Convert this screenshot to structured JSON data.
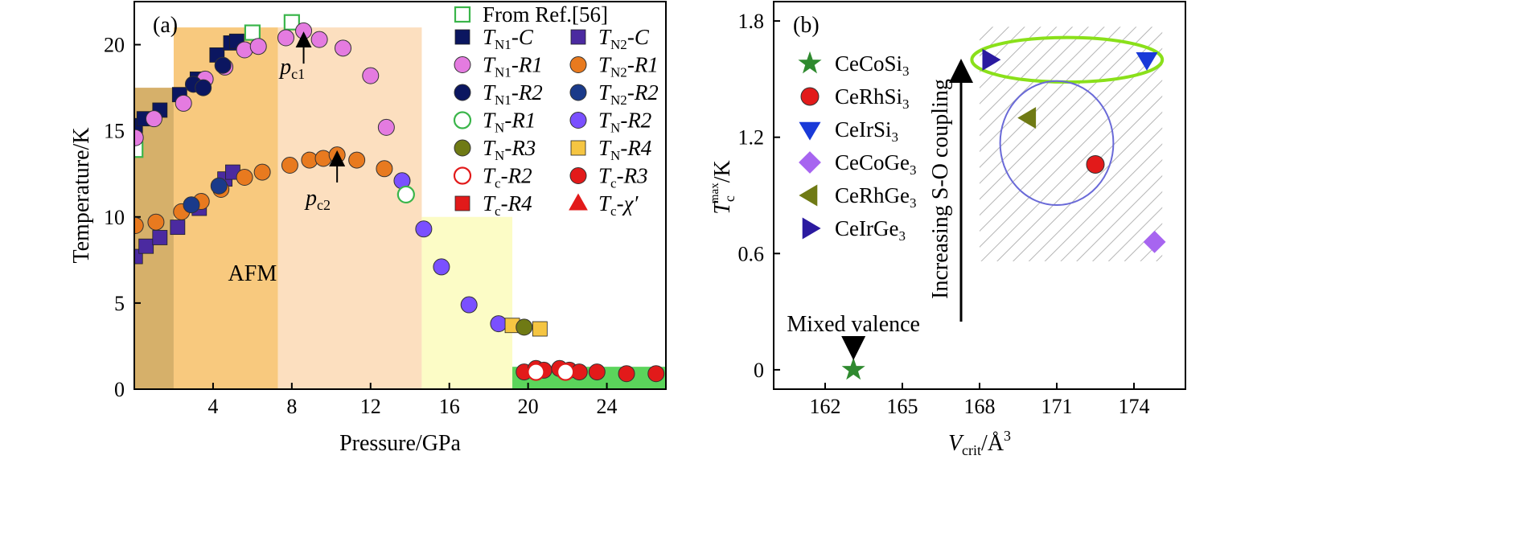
{
  "chart_data": [
    {
      "type": "scatter",
      "panel_label": "(a)",
      "xlabel": "Pressure/GPa",
      "ylabel": "Temperature/K",
      "xlim": [
        0,
        27
      ],
      "ylim": [
        0,
        22.5
      ],
      "xticks": [
        "4",
        "8",
        "12",
        "16",
        "20",
        "24"
      ],
      "yticks": [
        "0",
        "5",
        "10",
        "15",
        "20"
      ],
      "annotations": {
        "pc1": "p",
        "pc1_sub": "c1",
        "pc2": "p",
        "pc2_sub": "c2",
        "afm": "AFM"
      },
      "arrows": [
        {
          "label": "pc1",
          "x": 8.6,
          "y_from": 18.9,
          "y_to": 20.3
        },
        {
          "label": "pc2",
          "x": 10.3,
          "y_from": 12.0,
          "y_to": 13.4
        }
      ],
      "regions": [
        {
          "name": "region-dark",
          "x": [
            0,
            2.0
          ],
          "y_top": 17.5,
          "color": "#d6b06a"
        },
        {
          "name": "region-orange",
          "x": [
            2.0,
            7.3
          ],
          "y_top": 21.0,
          "color": "#f8c97e"
        },
        {
          "name": "region-salmon",
          "x": [
            7.3,
            14.6
          ],
          "y_top": 21.0,
          "color": "#fcdfbf"
        },
        {
          "name": "region-yellow",
          "x": [
            14.6,
            19.2
          ],
          "y_top": 10.0,
          "color": "#fcfcc6"
        },
        {
          "name": "region-green",
          "x": [
            19.2,
            27.0
          ],
          "y_top": 1.3,
          "color": "#5bd45b"
        }
      ],
      "legend": {
        "entries": [
          {
            "key": "ref56",
            "text": "From Ref.[56]",
            "marker": "square-open",
            "color": "#3ab54a"
          },
          {
            "key": "TN1_C",
            "sym": "T",
            "sub": "N1",
            "suffix": "-C",
            "marker": "square",
            "color": "#0b1660"
          },
          {
            "key": "TN2_C",
            "sym": "T",
            "sub": "N2",
            "suffix": "-C",
            "marker": "square",
            "color": "#4b2aa0"
          },
          {
            "key": "TN1_R1",
            "sym": "T",
            "sub": "N1",
            "suffix": "-R1",
            "marker": "circle",
            "color": "#e47be0"
          },
          {
            "key": "TN2_R1",
            "sym": "T",
            "sub": "N2",
            "suffix": "-R1",
            "marker": "circle",
            "color": "#e87a1f"
          },
          {
            "key": "TN1_R2",
            "sym": "T",
            "sub": "N1",
            "suffix": "-R2",
            "marker": "circle",
            "color": "#0b1660"
          },
          {
            "key": "TN2_R2",
            "sym": "T",
            "sub": "N2",
            "suffix": "-R2",
            "marker": "circle",
            "color": "#1a3a8a"
          },
          {
            "key": "TN_R1",
            "sym": "T",
            "sub": "N",
            "suffix": "-R1",
            "marker": "circle-open",
            "color": "#3ab54a"
          },
          {
            "key": "TN_R2",
            "sym": "T",
            "sub": "N",
            "suffix": "-R2",
            "marker": "circle",
            "color": "#7a50ff"
          },
          {
            "key": "TN_R3",
            "sym": "T",
            "sub": "N",
            "suffix": "-R3",
            "marker": "circle",
            "color": "#6f7a14"
          },
          {
            "key": "TN_R4",
            "sym": "T",
            "sub": "N",
            "suffix": "-R4",
            "marker": "square",
            "color": "#f5c542"
          },
          {
            "key": "Tc_R2",
            "sym": "T",
            "sub": "c",
            "suffix": "-R2",
            "marker": "circle-open",
            "color": "#e21a1a"
          },
          {
            "key": "Tc_R3",
            "sym": "T",
            "sub": "c",
            "suffix": "-R3",
            "marker": "circle",
            "color": "#e21a1a"
          },
          {
            "key": "Tc_R4",
            "sym": "T",
            "sub": "c",
            "suffix": "-R4",
            "marker": "square",
            "color": "#e21a1a"
          },
          {
            "key": "Tc_chi",
            "sym": "T",
            "sub": "c",
            "suffix": "-χ′",
            "marker": "triangle",
            "color": "#e21a1a"
          }
        ]
      },
      "series": [
        {
          "key": "ref56",
          "points": [
            [
              0.05,
              13.9
            ],
            [
              6.0,
              20.7
            ],
            [
              8.0,
              21.3
            ]
          ]
        },
        {
          "key": "TN1_C",
          "points": [
            [
              0.05,
              15.3
            ],
            [
              0.5,
              15.7
            ],
            [
              1.3,
              16.2
            ],
            [
              2.3,
              17.1
            ],
            [
              3.2,
              18.0
            ],
            [
              4.2,
              19.4
            ],
            [
              4.9,
              20.1
            ],
            [
              5.2,
              20.2
            ]
          ]
        },
        {
          "key": "TN2_C",
          "points": [
            [
              0.05,
              7.7
            ],
            [
              0.6,
              8.3
            ],
            [
              1.3,
              8.8
            ],
            [
              2.2,
              9.4
            ],
            [
              3.3,
              10.5
            ],
            [
              4.6,
              12.2
            ],
            [
              5.0,
              12.6
            ]
          ]
        },
        {
          "key": "TN1_R1",
          "points": [
            [
              0.05,
              14.6
            ],
            [
              1.0,
              15.7
            ],
            [
              2.5,
              16.6
            ],
            [
              3.6,
              18.0
            ],
            [
              4.6,
              18.7
            ],
            [
              5.6,
              19.7
            ],
            [
              6.3,
              19.9
            ],
            [
              7.7,
              20.4
            ],
            [
              8.6,
              20.8
            ],
            [
              9.4,
              20.3
            ],
            [
              10.6,
              19.8
            ],
            [
              12.0,
              18.2
            ],
            [
              12.8,
              15.2
            ]
          ]
        },
        {
          "key": "TN1_R2",
          "points": [
            [
              3.0,
              17.7
            ],
            [
              3.5,
              17.5
            ],
            [
              4.5,
              18.8
            ]
          ]
        },
        {
          "key": "TN2_R1",
          "points": [
            [
              0.05,
              9.5
            ],
            [
              1.1,
              9.7
            ],
            [
              2.4,
              10.3
            ],
            [
              3.4,
              10.9
            ],
            [
              4.4,
              11.6
            ],
            [
              5.6,
              12.3
            ],
            [
              6.5,
              12.6
            ],
            [
              7.9,
              13.0
            ],
            [
              8.9,
              13.3
            ],
            [
              9.6,
              13.4
            ],
            [
              10.3,
              13.6
            ],
            [
              11.3,
              13.3
            ],
            [
              12.7,
              12.8
            ]
          ]
        },
        {
          "key": "TN2_R2",
          "points": [
            [
              2.9,
              10.7
            ],
            [
              4.3,
              11.8
            ]
          ]
        },
        {
          "key": "TN_R2",
          "points": [
            [
              13.6,
              12.1
            ],
            [
              14.7,
              9.3
            ],
            [
              15.6,
              7.1
            ],
            [
              17.0,
              4.9
            ],
            [
              18.5,
              3.8
            ]
          ]
        },
        {
          "key": "TN_R1",
          "points": [
            [
              13.8,
              11.3
            ]
          ]
        },
        {
          "key": "TN_R4",
          "points": [
            [
              19.2,
              3.7
            ],
            [
              20.6,
              3.5
            ]
          ]
        },
        {
          "key": "TN_R3",
          "points": [
            [
              19.8,
              3.6
            ]
          ]
        },
        {
          "key": "Tc_R3",
          "points": [
            [
              19.8,
              1.0
            ],
            [
              20.4,
              1.2
            ],
            [
              20.8,
              1.1
            ],
            [
              21.6,
              1.2
            ],
            [
              22.1,
              1.1
            ],
            [
              22.6,
              1.0
            ],
            [
              23.5,
              1.0
            ],
            [
              25.0,
              0.9
            ],
            [
              26.5,
              0.9
            ]
          ]
        },
        {
          "key": "Tc_R2",
          "points": [
            [
              20.4,
              1.0
            ],
            [
              21.9,
              1.0
            ]
          ]
        }
      ]
    },
    {
      "type": "scatter",
      "panel_label": "(b)",
      "xlabel_main": "V",
      "xlabel_sub": "crit",
      "xlabel_unit": "/Å",
      "xlabel_sup": "3",
      "ylabel_main": "T",
      "ylabel_sub": "c",
      "ylabel_sup": "max",
      "ylabel_unit": "/K",
      "xlim": [
        160.0,
        176.0
      ],
      "ylim": [
        -0.1,
        1.9
      ],
      "xticks": [
        "162",
        "165",
        "168",
        "171",
        "174"
      ],
      "yticks": [
        "0",
        "0.6",
        "1.2",
        "1.8"
      ],
      "annotations": {
        "mixed": "Mixed valence",
        "increasing": "Increasing S-O coupling"
      },
      "hatched_region": {
        "x": [
          168.0,
          175.1
        ],
        "y": [
          0.56,
          1.77
        ]
      },
      "ellipse_green": {
        "cx": 171.4,
        "cy": 1.6,
        "rx": 3.7,
        "ry": 0.115,
        "color": "#8ae01a"
      },
      "circle_blue": {
        "cx": 171.0,
        "cy": 1.17,
        "rx": 2.2,
        "ry": 0.32,
        "color": "#6a6ad8"
      },
      "legend": {
        "entries": [
          {
            "key": "CeCoSi",
            "name": "CeCoSi",
            "sub": "3",
            "marker": "star",
            "color": "#2f8a2f"
          },
          {
            "key": "CeRhSi",
            "name": "CeRhSi",
            "sub": "3",
            "marker": "circle",
            "color": "#e21a1a"
          },
          {
            "key": "CeIrSi",
            "name": "CeIrSi",
            "sub": "3",
            "marker": "triangle-down",
            "color": "#1a3ad8"
          },
          {
            "key": "CeCoGe",
            "name": "CeCoGe",
            "sub": "3",
            "marker": "diamond",
            "color": "#a765f0"
          },
          {
            "key": "CeRhGe",
            "name": "CeRhGe",
            "sub": "3",
            "marker": "triangle-left",
            "color": "#6f7a14"
          },
          {
            "key": "CeIrGe",
            "name": "CeIrGe",
            "sub": "3",
            "marker": "triangle-right",
            "color": "#2b1aa0"
          }
        ]
      },
      "points": [
        {
          "key": "CeCoSi",
          "x": 163.1,
          "y": 0.0
        },
        {
          "key": "CeRhSi",
          "x": 172.5,
          "y": 1.06
        },
        {
          "key": "CeIrSi",
          "x": 174.5,
          "y": 1.6
        },
        {
          "key": "CeCoGe",
          "x": 174.8,
          "y": 0.66
        },
        {
          "key": "CeRhGe",
          "x": 169.9,
          "y": 1.3
        },
        {
          "key": "CeIrGe",
          "x": 168.4,
          "y": 1.6
        }
      ]
    }
  ]
}
